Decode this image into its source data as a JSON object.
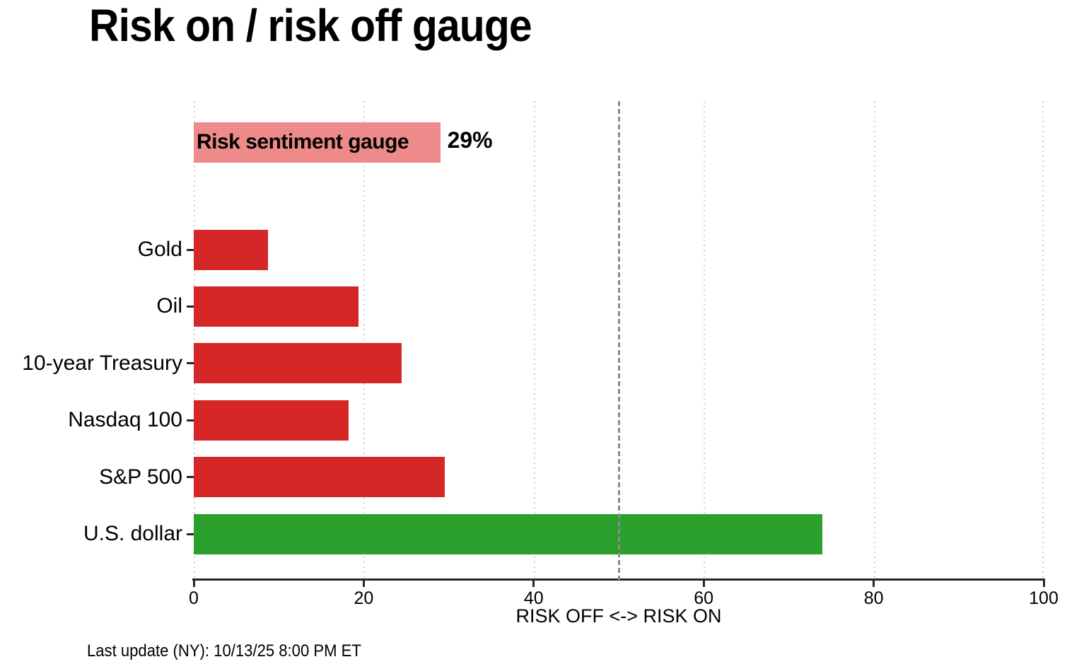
{
  "title": "Risk on / risk off gauge",
  "footer": "Last update (NY): 10/13/25 8:00 PM ET",
  "colors": {
    "risk_off_red": "#d62728",
    "risk_on_green": "#2ca02c",
    "gauge_pink": "#ee8a8a",
    "reference_line_gray": "#8c8c8c",
    "grid_gray": "#cfcfcf",
    "axis_dark": "#262626",
    "background": "#ffffff"
  },
  "chart_data": {
    "type": "bar",
    "orientation": "horizontal",
    "title": "Risk on / risk off gauge",
    "xlabel": "RISK OFF <-> RISK ON",
    "xlim": [
      0,
      100
    ],
    "xticks": [
      0,
      20,
      40,
      60,
      80,
      100
    ],
    "grid": "vertical dotted lines at each x tick",
    "legend": "none",
    "reference_line": {
      "x": 50,
      "style": "dashed",
      "color": "#8c8c8c"
    },
    "gauge": {
      "label": "Risk sentiment gauge",
      "value": 29,
      "display_value": "29%",
      "color": "#ee8a8a"
    },
    "categories": [
      "Gold",
      "Oil",
      "10-year Treasury",
      "Nasdaq 100",
      "S&P 500",
      "U.S. dollar"
    ],
    "values": [
      8.7,
      19.4,
      24.5,
      18.2,
      29.5,
      74
    ],
    "bar_colors": [
      "#d62728",
      "#d62728",
      "#d62728",
      "#d62728",
      "#d62728",
      "#2ca02c"
    ]
  }
}
